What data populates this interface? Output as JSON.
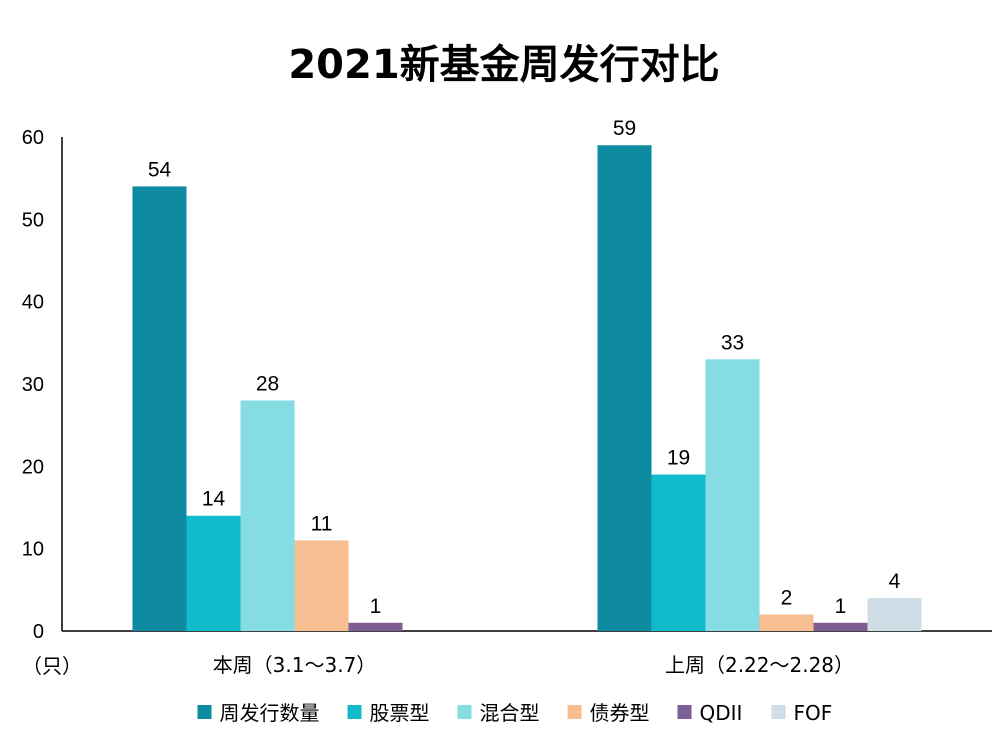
{
  "chart_data": {
    "type": "bar",
    "title": "2021新基金周发行对比",
    "unit_label": "（只）",
    "categories": [
      "本周（3.1～3.7）",
      "上周（2.22～2.28）"
    ],
    "ylim": [
      0,
      60
    ],
    "yticks": [
      0,
      10,
      20,
      30,
      40,
      50,
      60
    ],
    "grid": false,
    "legend_position": "bottom",
    "series": [
      {
        "name": "周发行数量",
        "color": "#0E8BA0",
        "values": [
          54,
          59
        ]
      },
      {
        "name": "股票型",
        "color": "#10BCCB",
        "values": [
          14,
          19
        ]
      },
      {
        "name": "混合型",
        "color": "#85DCE3",
        "values": [
          28,
          33
        ]
      },
      {
        "name": "债券型",
        "color": "#F7BE92",
        "values": [
          11,
          2
        ]
      },
      {
        "name": "QDII",
        "color": "#7D5E95",
        "values": [
          1,
          1
        ]
      },
      {
        "name": "FOF",
        "color": "#CFDEE6",
        "values": [
          null,
          4
        ]
      }
    ]
  }
}
